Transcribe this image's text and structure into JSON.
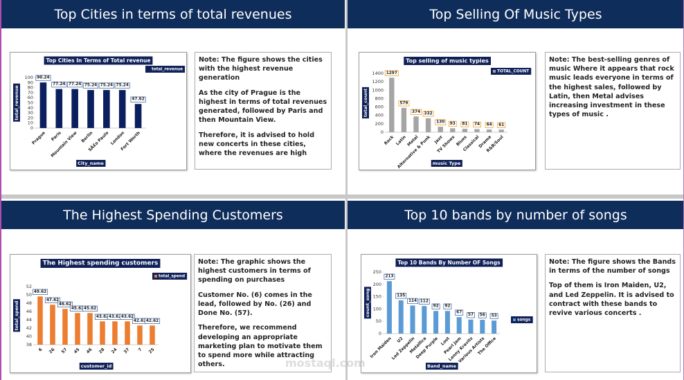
{
  "panels": [
    {
      "heading": "Top Cities in terms of total revenues",
      "note": [
        "Note: The figure shows the cities with the highest revenue generation",
        "As the city of Prague is the highest in terms of total revenues generated, followed by Paris and then Mountain View.",
        "Therefore, it is advised to hold new concerts in these cities, where the revenues are high"
      ]
    },
    {
      "heading": "Top Selling Of Music Types",
      "note": [
        "Note: The best-selling genres of music Where it appears that rock music leads everyone in terms of the highest sales, followed by Latin, then Metal advises increasing investment in these types of music ."
      ]
    },
    {
      "heading": "The Highest Spending Customers",
      "note": [
        "Note: The graphic shows the highest customers in terms of spending on purchases",
        "Customer No. (6) comes in the lead, followed by No. (26) and Done No. (57).",
        "Therefore, we recommend developing an appropriate marketing plan to motivate them to spend more while attracting others."
      ]
    },
    {
      "heading": "Top 10 bands by number of songs",
      "note": [
        "Note: The figure  shows the Bands in terms of the number of songs",
        "Top of them is Iron Maiden, U2, and Led Zeppelin. It is advised to contract with these bands to revive various concerts ."
      ]
    }
  ],
  "watermark": "mostaql.com",
  "chart_data": [
    {
      "type": "bar",
      "title": "Top Cities In Terms of Total revenue",
      "ylabel": "total_revenue",
      "xlabel": "City_name",
      "categories": [
        "Prague",
        "Paris",
        "Mountain View",
        "Berlin",
        "SÃ£o Paulo",
        "London",
        "Fort Worth"
      ],
      "series": [
        {
          "name": "total_revenue",
          "color": "#0b1f5e",
          "values": [
            90.24,
            77.24,
            77.24,
            75.24,
            75.24,
            75.24,
            47.62
          ]
        }
      ],
      "ylim": [
        0,
        100
      ],
      "yticks": [
        0,
        10,
        20,
        30,
        40,
        50,
        60,
        70,
        80,
        90,
        100
      ]
    },
    {
      "type": "bar",
      "title": "Top selling of music typies",
      "ylabel": "total_count",
      "xlabel": "music Type",
      "categories": [
        "Rock",
        "Latin",
        "Metal",
        "Alternative & Punk",
        "Jazz",
        "TV Shows",
        "Blues",
        "Classical",
        "Drama",
        "R&B/Soul"
      ],
      "series": [
        {
          "name": "TOTAL_COUNT",
          "color": "#a5a5a5",
          "values": [
            1297,
            579,
            374,
            332,
            130,
            93,
            81,
            74,
            64,
            61
          ]
        }
      ],
      "ylim": [
        0,
        1400
      ],
      "yticks": [
        0,
        200,
        400,
        600,
        800,
        1000,
        1200,
        1400
      ]
    },
    {
      "type": "bar",
      "title": "The Highest spending customers",
      "ylabel": "total_spend",
      "xlabel": "customer_id",
      "categories": [
        "6",
        "26",
        "57",
        "45",
        "46",
        "28",
        "24",
        "37",
        "7",
        "25"
      ],
      "series": [
        {
          "name": "total_spend",
          "color": "#ed7d31",
          "values": [
            49.62,
            47.62,
            46.62,
            45.62,
            45.62,
            43.62,
            43.62,
            43.62,
            42.62,
            42.62
          ]
        }
      ],
      "ylim": [
        38,
        52
      ],
      "yticks": [
        38,
        40,
        42,
        44,
        46,
        48,
        50,
        52
      ]
    },
    {
      "type": "bar",
      "title": "Top 10 Bands By Number OF Songs",
      "ylabel": "count_song",
      "xlabel": "Band_name",
      "categories": [
        "Iron Maiden",
        "U2",
        "Led Zeppelin",
        "Metallica",
        "Deep Purple",
        "Lost",
        "Pearl Jam",
        "Lenny Kravitz",
        "Various Artists",
        "The Office"
      ],
      "series": [
        {
          "name": "songs",
          "color": "#5b9bd5",
          "values": [
            213,
            135,
            114,
            112,
            92,
            92,
            67,
            57,
            56,
            53
          ]
        }
      ],
      "ylim": [
        0,
        250
      ],
      "yticks": [
        0,
        50,
        100,
        150,
        200,
        250
      ]
    }
  ]
}
